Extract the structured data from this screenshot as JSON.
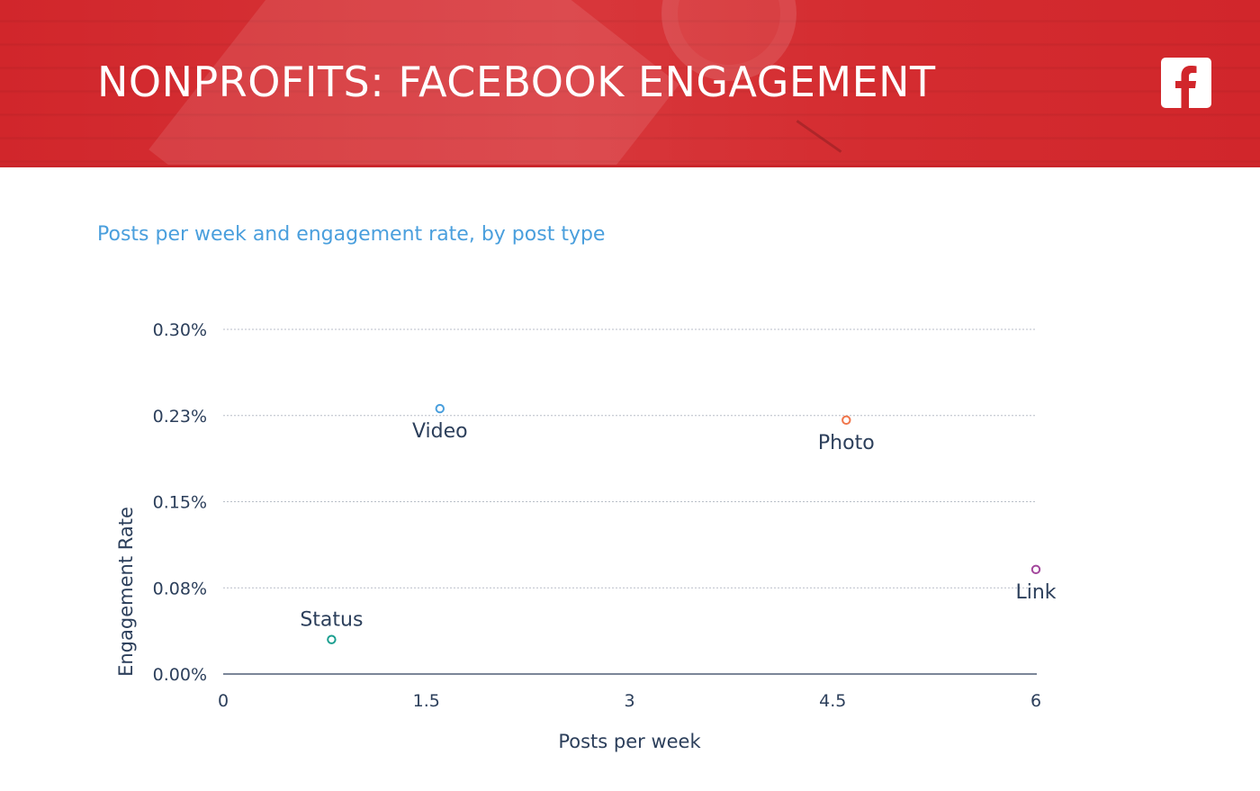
{
  "header": {
    "title": "NONPROFITS: FACEBOOK ENGAGEMENT",
    "logo_icon": "facebook-icon"
  },
  "chart_data": {
    "type": "scatter",
    "title": "",
    "subtitle": "Posts per week and engagement rate, by post type",
    "xlabel": "Posts per week",
    "ylabel": "Engagement Rate",
    "xlim": [
      0,
      6
    ],
    "ylim": [
      0,
      0.3
    ],
    "x_ticks": [
      "0",
      "1.5",
      "3",
      "4.5",
      "6"
    ],
    "y_ticks": [
      "0.00%",
      "0.08%",
      "0.15%",
      "0.23%",
      "0.30%"
    ],
    "grid": true,
    "points": [
      {
        "name": "Video",
        "x": 1.6,
        "y": 0.231,
        "color": "#4a9fdd",
        "label_position": "below"
      },
      {
        "name": "Photo",
        "x": 4.6,
        "y": 0.221,
        "color": "#f0764b",
        "label_position": "below"
      },
      {
        "name": "Link",
        "x": 6.0,
        "y": 0.091,
        "color": "#a3479c",
        "label_position": "below"
      },
      {
        "name": "Status",
        "x": 0.8,
        "y": 0.03,
        "color": "#1a9e8f",
        "label_position": "above"
      }
    ]
  },
  "colors": {
    "banner": "#d1262b",
    "subtitle": "#4a9fdd",
    "text": "#2c3f5b",
    "grid": "#b8bec8"
  }
}
